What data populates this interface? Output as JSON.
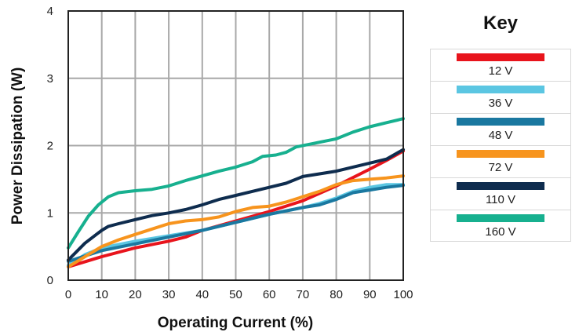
{
  "chart_data": {
    "type": "line",
    "xlabel": "Operating Current (%)",
    "ylabel": "Power Dissipation (W)",
    "xlim": [
      0,
      100
    ],
    "ylim": [
      0,
      4
    ],
    "xticks": [
      0,
      10,
      20,
      30,
      40,
      50,
      60,
      70,
      80,
      90,
      100
    ],
    "yticks": [
      0,
      1,
      2,
      3,
      4
    ],
    "grid": true,
    "legend_title": "Key",
    "legend_position": "right",
    "series": [
      {
        "name": "12 V",
        "color": "#e8141c",
        "x": [
          0,
          10,
          20,
          30,
          35,
          40,
          50,
          60,
          70,
          80,
          90,
          95,
          100
        ],
        "y": [
          0.2,
          0.35,
          0.48,
          0.58,
          0.64,
          0.74,
          0.88,
          1.02,
          1.18,
          1.4,
          1.65,
          1.78,
          1.92
        ]
      },
      {
        "name": "36 V",
        "color": "#5bc6e2",
        "x": [
          0,
          5,
          10,
          20,
          30,
          40,
          50,
          60,
          70,
          75,
          80,
          85,
          90,
          95,
          100
        ],
        "y": [
          0.22,
          0.38,
          0.48,
          0.58,
          0.66,
          0.74,
          0.86,
          0.98,
          1.08,
          1.14,
          1.22,
          1.32,
          1.38,
          1.42,
          1.42
        ]
      },
      {
        "name": "48 V",
        "color": "#1a78a0",
        "x": [
          0,
          5,
          10,
          20,
          30,
          40,
          50,
          60,
          70,
          75,
          80,
          85,
          90,
          95,
          100
        ],
        "y": [
          0.28,
          0.36,
          0.44,
          0.54,
          0.64,
          0.74,
          0.86,
          0.98,
          1.08,
          1.12,
          1.2,
          1.3,
          1.34,
          1.38,
          1.41
        ]
      },
      {
        "name": "72 V",
        "color": "#f7941d",
        "x": [
          0,
          5,
          10,
          15,
          20,
          25,
          30,
          35,
          40,
          45,
          50,
          55,
          60,
          65,
          70,
          75,
          80,
          85,
          90,
          95,
          100
        ],
        "y": [
          0.2,
          0.35,
          0.5,
          0.6,
          0.68,
          0.76,
          0.84,
          0.88,
          0.9,
          0.94,
          1.02,
          1.08,
          1.1,
          1.16,
          1.24,
          1.32,
          1.42,
          1.48,
          1.5,
          1.52,
          1.55
        ]
      },
      {
        "name": "110 V",
        "color": "#0e2c4e",
        "x": [
          0,
          5,
          10,
          12,
          15,
          20,
          25,
          30,
          35,
          40,
          45,
          50,
          55,
          60,
          65,
          70,
          75,
          80,
          85,
          90,
          95,
          100
        ],
        "y": [
          0.3,
          0.55,
          0.74,
          0.8,
          0.84,
          0.9,
          0.96,
          1.0,
          1.05,
          1.12,
          1.2,
          1.26,
          1.32,
          1.38,
          1.44,
          1.54,
          1.58,
          1.62,
          1.68,
          1.74,
          1.8,
          1.94
        ]
      },
      {
        "name": "160 V",
        "color": "#17b08f",
        "x": [
          0,
          3,
          6,
          9,
          12,
          15,
          20,
          25,
          30,
          35,
          40,
          45,
          50,
          55,
          58,
          62,
          65,
          68,
          72,
          75,
          80,
          85,
          90,
          95,
          100
        ],
        "y": [
          0.48,
          0.72,
          0.95,
          1.12,
          1.24,
          1.3,
          1.33,
          1.35,
          1.4,
          1.48,
          1.55,
          1.62,
          1.68,
          1.76,
          1.84,
          1.86,
          1.9,
          1.98,
          2.02,
          2.05,
          2.1,
          2.2,
          2.28,
          2.34,
          2.4
        ]
      }
    ]
  }
}
